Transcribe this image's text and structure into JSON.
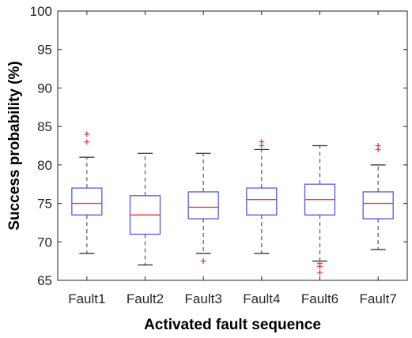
{
  "chart_data": {
    "type": "boxplot",
    "title": "",
    "xlabel": "Activated fault sequence",
    "ylabel": "Success probability (%)",
    "ylim": [
      65,
      100
    ],
    "yticks": [
      65,
      70,
      75,
      80,
      85,
      90,
      95,
      100
    ],
    "grid": false,
    "colors": {
      "box": "#4a4ae8",
      "median": "#e83a3a",
      "whisker": "#5a5a5a",
      "outlier": "#e83a3a",
      "axis": "#262626"
    },
    "categories": [
      "Fault1",
      "Fault2",
      "Fault3",
      "Fault4",
      "Fault6",
      "Fault7"
    ],
    "boxes": [
      {
        "label": "Fault1",
        "whisker_low": 68.5,
        "q1": 73.5,
        "median": 75.0,
        "q3": 77.0,
        "whisker_high": 81.0,
        "outliers": [
          83.0,
          84.0
        ]
      },
      {
        "label": "Fault2",
        "whisker_low": 67.0,
        "q1": 71.0,
        "median": 73.5,
        "q3": 76.0,
        "whisker_high": 81.5,
        "outliers": []
      },
      {
        "label": "Fault3",
        "whisker_low": 68.5,
        "q1": 73.0,
        "median": 74.5,
        "q3": 76.5,
        "whisker_high": 81.5,
        "outliers": [
          67.5
        ]
      },
      {
        "label": "Fault4",
        "whisker_low": 68.5,
        "q1": 73.5,
        "median": 75.5,
        "q3": 77.0,
        "whisker_high": 82.0,
        "outliers": [
          82.5,
          83.0
        ]
      },
      {
        "label": "Fault6",
        "whisker_low": 67.5,
        "q1": 73.5,
        "median": 75.5,
        "q3": 77.5,
        "whisker_high": 82.5,
        "outliers": [
          66.0,
          66.8,
          67.2
        ]
      },
      {
        "label": "Fault7",
        "whisker_low": 69.0,
        "q1": 73.0,
        "median": 75.0,
        "q3": 76.5,
        "whisker_high": 80.0,
        "outliers": [
          82.0,
          82.5
        ]
      }
    ]
  }
}
